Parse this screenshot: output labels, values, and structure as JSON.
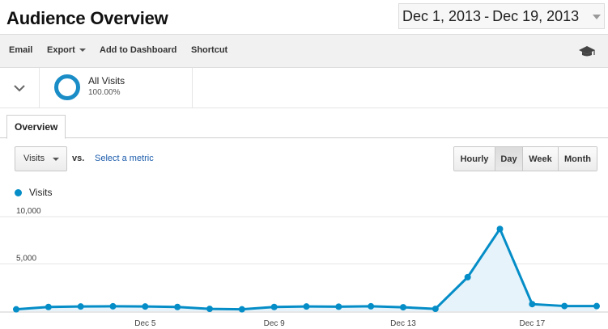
{
  "header": {
    "title": "Audience Overview",
    "date_start": "Dec 1, 2013",
    "date_sep": "-",
    "date_end": "Dec 19, 2013"
  },
  "toolbar": {
    "email": "Email",
    "export": "Export",
    "add_to_dashboard": "Add to Dashboard",
    "shortcut": "Shortcut",
    "help_icon": "graduation-cap-icon"
  },
  "segment": {
    "name": "All Visits",
    "percent": "100.00%",
    "color": "#1a8dc7"
  },
  "tabs": [
    {
      "label": "Overview",
      "active": true
    }
  ],
  "controls": {
    "metric": "Visits",
    "vs": "vs.",
    "select_metric": "Select a metric",
    "granularity": [
      {
        "label": "Hourly",
        "active": false
      },
      {
        "label": "Day",
        "active": true
      },
      {
        "label": "Week",
        "active": false
      },
      {
        "label": "Month",
        "active": false
      }
    ]
  },
  "chart_data": {
    "type": "area",
    "legend_position": "top-left",
    "grid": true,
    "series_color": "#058dc7",
    "y_ticks": [
      "10,000",
      "5,000"
    ],
    "x_tick_labels": [
      {
        "day": 5,
        "label": "Dec 5"
      },
      {
        "day": 9,
        "label": "Dec 9"
      },
      {
        "day": 13,
        "label": "Dec 13"
      },
      {
        "day": 17,
        "label": "Dec 17"
      }
    ],
    "ylim": [
      0,
      10000
    ],
    "series": [
      {
        "name": "Visits",
        "x": [
          1,
          2,
          3,
          4,
          5,
          6,
          7,
          8,
          9,
          10,
          11,
          12,
          13,
          14,
          15,
          16,
          17,
          18,
          19
        ],
        "values": [
          200,
          450,
          500,
          520,
          500,
          450,
          250,
          200,
          450,
          500,
          480,
          520,
          420,
          250,
          3600,
          8700,
          750,
          550,
          540
        ]
      }
    ]
  }
}
